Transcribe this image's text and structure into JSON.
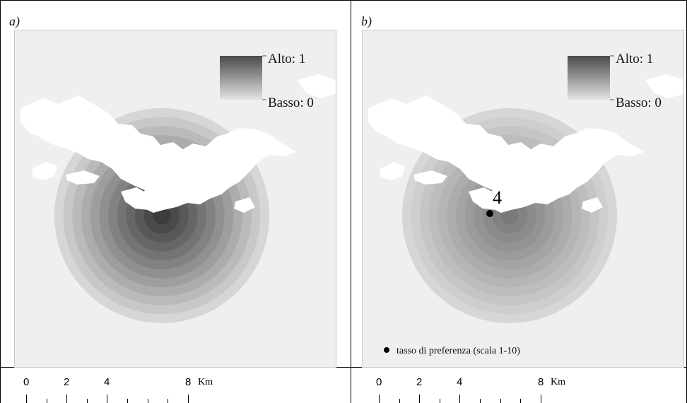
{
  "panel_a": {
    "label": "a)",
    "legend_high": "Alto: 1",
    "legend_low": "Basso: 0"
  },
  "panel_b": {
    "label": "b)",
    "legend_high": "Alto: 1",
    "legend_low": "Basso: 0",
    "point_value": "4",
    "preference_legend": "tasso di preferenza (scala 1-10)"
  },
  "scale_bar": {
    "labels": [
      "0",
      "2",
      "4",
      "8"
    ],
    "unit": "Km"
  },
  "colors": {
    "background": "#efefef",
    "ring_outer": "#d6d6d6",
    "ring_inner_a": "#3c3c3c",
    "ring_inner_b": "#7a7a7a",
    "cloud": "#ffffff"
  }
}
